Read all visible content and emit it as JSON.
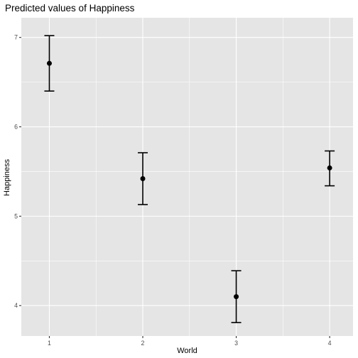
{
  "chart_data": {
    "type": "scatter",
    "title": "Predicted values of Happiness",
    "xlabel": "World",
    "ylabel": "Happiness",
    "x_ticks": [
      "1",
      "2",
      "3",
      "4"
    ],
    "y_ticks": [
      "4",
      "5",
      "6",
      "7"
    ],
    "xlim": [
      0.7,
      4.25
    ],
    "ylim": [
      3.66,
      7.22
    ],
    "grid": true,
    "legend": "none",
    "panel_background": "#e5e5e5",
    "grid_color": "#ffffff",
    "series": [
      {
        "points": [
          {
            "x": 1,
            "y": 6.71,
            "lower": 6.4,
            "upper": 7.02
          },
          {
            "x": 2,
            "y": 5.42,
            "lower": 5.13,
            "upper": 5.71
          },
          {
            "x": 3,
            "y": 4.1,
            "lower": 3.81,
            "upper": 4.39
          },
          {
            "x": 4,
            "y": 5.54,
            "lower": 5.34,
            "upper": 5.73
          }
        ]
      }
    ]
  }
}
